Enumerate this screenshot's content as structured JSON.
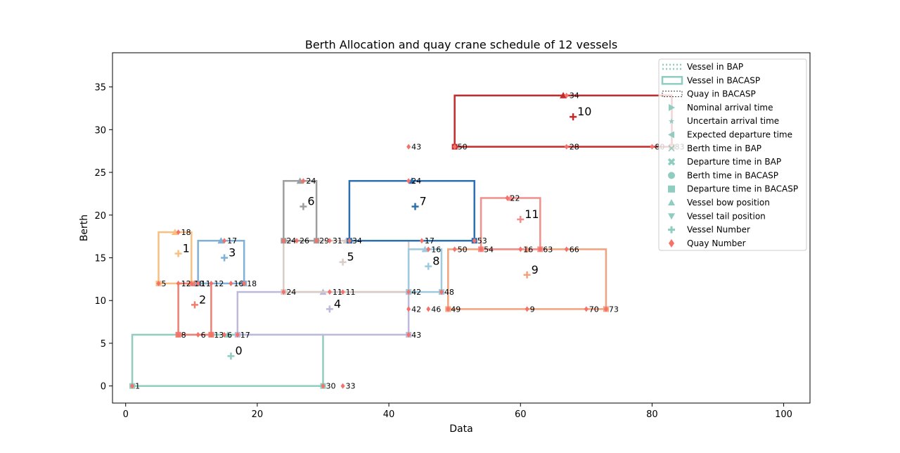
{
  "chart_data": {
    "type": "scatter",
    "title": "Berth Allocation and quay crane schedule  of 12 vessels",
    "xlabel": "Data",
    "ylabel": "Berth",
    "xlim": [
      -2,
      104
    ],
    "ylim": [
      -2,
      39
    ],
    "xticks": [
      0,
      20,
      40,
      60,
      80,
      100
    ],
    "yticks": [
      0,
      5,
      10,
      15,
      20,
      25,
      30,
      35
    ],
    "grid": false,
    "legend_position": "top-right",
    "legend": [
      {
        "label": "Vessel in BAP",
        "symbol": "dotted-line",
        "color": "#8fcdc1"
      },
      {
        "label": "Vessel in BACASP",
        "symbol": "solid-line",
        "color": "#8fcdc1"
      },
      {
        "label": "Quay in BACASP",
        "symbol": "dashed-box",
        "color": "#000000"
      },
      {
        "label": "Nominal arrival time",
        "symbol": "triangle-right",
        "color": "#8fcdc1"
      },
      {
        "label": "Uncertain arrival time",
        "symbol": "star",
        "color": "#8fcdc1"
      },
      {
        "label": "Expected departure time",
        "symbol": "triangle-left",
        "color": "#8fcdc1"
      },
      {
        "label": "Berth time in BAP",
        "symbol": "x",
        "color": "#8fcdc1"
      },
      {
        "label": "Departure time in BAP",
        "symbol": "x-filled",
        "color": "#8fcdc1"
      },
      {
        "label": "Berth time in BACASP",
        "symbol": "circle",
        "color": "#8fcdc1"
      },
      {
        "label": "Departure time in BACASP",
        "symbol": "square",
        "color": "#8fcdc1"
      },
      {
        "label": "Vessel bow position",
        "symbol": "triangle-up",
        "color": "#8fcdc1"
      },
      {
        "label": "Vessel tail position",
        "symbol": "triangle-down",
        "color": "#8fcdc1"
      },
      {
        "label": "Vessel Number",
        "symbol": "plus",
        "color": "#8fcdc1"
      },
      {
        "label": "Quay Number",
        "symbol": "diamond",
        "color": "#f4726a"
      }
    ],
    "vessels": [
      {
        "id": "0",
        "x0": 1,
        "x1": 30,
        "y0": 0,
        "y1": 6,
        "color": "#8fcdc1",
        "label_x": 16,
        "label_y": 3.5
      },
      {
        "id": "1",
        "x0": 5,
        "x1": 10,
        "y0": 12,
        "y1": 18,
        "color": "#f9bf80",
        "label_x": 8,
        "label_y": 15.5
      },
      {
        "id": "2",
        "x0": 8,
        "x1": 13,
        "y0": 6,
        "y1": 12,
        "color": "#ee7f70",
        "label_x": 10.5,
        "label_y": 9.5
      },
      {
        "id": "3",
        "x0": 11,
        "x1": 18,
        "y0": 12,
        "y1": 17,
        "color": "#7fb1d6",
        "label_x": 15,
        "label_y": 15
      },
      {
        "id": "4",
        "x0": 17,
        "x1": 43,
        "y0": 6,
        "y1": 11,
        "color": "#bcb9da",
        "label_x": 31,
        "label_y": 9
      },
      {
        "id": "5",
        "x0": 24,
        "x1": 43,
        "y0": 11,
        "y1": 17,
        "color": "#d9ccc7",
        "label_x": 33,
        "label_y": 14.5
      },
      {
        "id": "6",
        "x0": 24,
        "x1": 29,
        "y0": 17,
        "y1": 24,
        "color": "#9e9e9e",
        "label_x": 27,
        "label_y": 21
      },
      {
        "id": "7",
        "x0": 34,
        "x1": 53,
        "y0": 17,
        "y1": 24,
        "color": "#2b71b0",
        "label_x": 44,
        "label_y": 21
      },
      {
        "id": "8",
        "x0": 43,
        "x1": 48,
        "y0": 11,
        "y1": 16,
        "color": "#9ec9df",
        "label_x": 46,
        "label_y": 14
      },
      {
        "id": "9",
        "x0": 49,
        "x1": 73,
        "y0": 9,
        "y1": 16,
        "color": "#f3a27c",
        "label_x": 61,
        "label_y": 13
      },
      {
        "id": "10",
        "x0": 50,
        "x1": 83,
        "y0": 28,
        "y1": 34,
        "color": "#c42a2a",
        "label_x": 68,
        "label_y": 31.5
      },
      {
        "id": "11",
        "x0": 54,
        "x1": 63,
        "y0": 16,
        "y1": 22,
        "color": "#f38e8a",
        "label_x": 60,
        "label_y": 19.5
      }
    ],
    "quay_labels": [
      {
        "x": 1,
        "y": 0,
        "text": "1"
      },
      {
        "x": 30,
        "y": 0,
        "text": "30"
      },
      {
        "x": 33,
        "y": 0,
        "text": "33"
      },
      {
        "x": 5,
        "y": 12,
        "text": "5"
      },
      {
        "x": 8,
        "y": 12,
        "text": "12"
      },
      {
        "x": 10,
        "y": 12,
        "text": "10"
      },
      {
        "x": 11,
        "y": 12,
        "text": "11"
      },
      {
        "x": 8,
        "y": 18,
        "text": "18"
      },
      {
        "x": 8,
        "y": 6,
        "text": "8"
      },
      {
        "x": 11,
        "y": 6,
        "text": "6"
      },
      {
        "x": 13,
        "y": 6,
        "text": "13"
      },
      {
        "x": 16,
        "y": 12,
        "text": "16"
      },
      {
        "x": 18,
        "y": 12,
        "text": "18"
      },
      {
        "x": 13,
        "y": 12,
        "text": "12"
      },
      {
        "x": 15,
        "y": 17,
        "text": "17"
      },
      {
        "x": 17,
        "y": 6,
        "text": "17"
      },
      {
        "x": 15,
        "y": 6,
        "text": "6"
      },
      {
        "x": 24,
        "y": 11,
        "text": "24"
      },
      {
        "x": 31,
        "y": 11,
        "text": "11"
      },
      {
        "x": 33,
        "y": 11,
        "text": "11"
      },
      {
        "x": 24,
        "y": 17,
        "text": "24"
      },
      {
        "x": 26,
        "y": 17,
        "text": "26"
      },
      {
        "x": 29,
        "y": 17,
        "text": "29"
      },
      {
        "x": 31,
        "y": 17,
        "text": "31"
      },
      {
        "x": 34,
        "y": 17,
        "text": "34"
      },
      {
        "x": 27,
        "y": 24,
        "text": "24"
      },
      {
        "x": 43,
        "y": 24,
        "text": "24"
      },
      {
        "x": 45,
        "y": 17,
        "text": "17"
      },
      {
        "x": 53,
        "y": 17,
        "text": "53"
      },
      {
        "x": 46,
        "y": 16,
        "text": "16"
      },
      {
        "x": 43,
        "y": 11,
        "text": "42"
      },
      {
        "x": 48,
        "y": 11,
        "text": "48"
      },
      {
        "x": 43,
        "y": 9,
        "text": "42"
      },
      {
        "x": 43,
        "y": 6,
        "text": "43"
      },
      {
        "x": 46,
        "y": 9,
        "text": "46"
      },
      {
        "x": 49,
        "y": 9,
        "text": "49"
      },
      {
        "x": 61,
        "y": 9,
        "text": "9"
      },
      {
        "x": 70,
        "y": 9,
        "text": "70"
      },
      {
        "x": 73,
        "y": 9,
        "text": "73"
      },
      {
        "x": 50,
        "y": 16,
        "text": "50"
      },
      {
        "x": 54,
        "y": 16,
        "text": "54"
      },
      {
        "x": 60,
        "y": 16,
        "text": "16"
      },
      {
        "x": 63,
        "y": 16,
        "text": "63"
      },
      {
        "x": 67,
        "y": 16,
        "text": "66"
      },
      {
        "x": 58,
        "y": 22,
        "text": "22"
      },
      {
        "x": 50,
        "y": 28,
        "text": "50"
      },
      {
        "x": 67,
        "y": 28,
        "text": "28"
      },
      {
        "x": 80,
        "y": 28,
        "text": "80"
      },
      {
        "x": 83,
        "y": 28,
        "text": "83"
      },
      {
        "x": 43,
        "y": 28,
        "text": "43"
      },
      {
        "x": 67,
        "y": 34,
        "text": "34"
      }
    ]
  }
}
